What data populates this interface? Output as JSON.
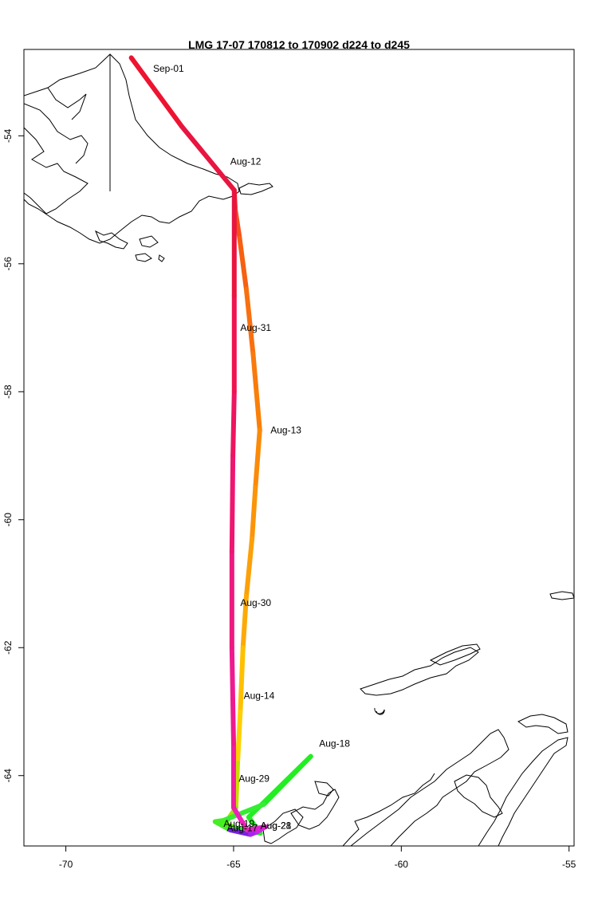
{
  "title": "LMG   17-07    170812 to 170902    d224 to d245",
  "map": {
    "x_ticks": [
      -70,
      -65,
      -60,
      -55
    ],
    "y_ticks": [
      -54,
      -56,
      -58,
      -60,
      -62,
      -64
    ],
    "x_range": [
      -71.25,
      -54.85
    ],
    "y_range": [
      -65.1,
      -52.65
    ]
  },
  "track": [
    {
      "lon": -68.05,
      "lat": -52.78,
      "color": "#ee1122"
    },
    {
      "lon": -66.55,
      "lat": -53.85,
      "color": "#ee1330"
    },
    {
      "lon": -64.98,
      "lat": -54.85,
      "color": "#e81540"
    },
    {
      "lon": -64.95,
      "lat": -55.15,
      "color": "#f23a1c"
    },
    {
      "lon": -64.82,
      "lat": -55.6,
      "color": "#f5501a"
    },
    {
      "lon": -64.62,
      "lat": -56.4,
      "color": "#f66010"
    },
    {
      "lon": -64.42,
      "lat": -57.4,
      "color": "#f87010"
    },
    {
      "lon": -64.32,
      "lat": -58.0,
      "color": "#f97a0c"
    },
    {
      "lon": -64.22,
      "lat": -58.6,
      "color": "#fa7f08"
    },
    {
      "lon": -64.35,
      "lat": -59.5,
      "color": "#fb8a08"
    },
    {
      "lon": -64.45,
      "lat": -60.3,
      "color": "#fc9408"
    },
    {
      "lon": -64.62,
      "lat": -61.2,
      "color": "#fca008"
    },
    {
      "lon": -64.72,
      "lat": -62.0,
      "color": "#fdaa06"
    },
    {
      "lon": -64.8,
      "lat": -63.0,
      "color": "#ffc000"
    },
    {
      "lon": -64.88,
      "lat": -63.8,
      "color": "#ffd000"
    },
    {
      "lon": -64.93,
      "lat": -64.5,
      "color": "#c8dd00"
    },
    {
      "lon": -65.25,
      "lat": -64.75,
      "color": "#99e800"
    },
    {
      "lon": -64.9,
      "lat": -64.83,
      "color": "#55ee00"
    },
    {
      "lon": -64.2,
      "lat": -64.9,
      "color": "#22ee22"
    },
    {
      "lon": -64.55,
      "lat": -64.65,
      "color": "#22ee22"
    },
    {
      "lon": -62.7,
      "lat": -63.7,
      "color": "#22ee22"
    },
    {
      "lon": -64.1,
      "lat": -64.45,
      "color": "#22ee22"
    },
    {
      "lon": -65.3,
      "lat": -64.7,
      "color": "#33ee33"
    },
    {
      "lon": -65.55,
      "lat": -64.72,
      "color": "#44ee22"
    },
    {
      "lon": -65.1,
      "lat": -64.85,
      "color": "#44ee22"
    },
    {
      "lon": -64.5,
      "lat": -64.92,
      "color": "#7722dd"
    },
    {
      "lon": -64.3,
      "lat": -64.88,
      "color": "#aa22ee"
    },
    {
      "lon": -64.05,
      "lat": -64.8,
      "color": "#cc22ee"
    },
    {
      "lon": -64.6,
      "lat": -64.85,
      "color": "#dd22cc"
    },
    {
      "lon": -65.0,
      "lat": -64.5,
      "color": "#ee22bb"
    },
    {
      "lon": -65.0,
      "lat": -63.5,
      "color": "#ee1ea0"
    },
    {
      "lon": -65.05,
      "lat": -62.0,
      "color": "#ee1a90"
    },
    {
      "lon": -65.05,
      "lat": -60.5,
      "color": "#ee1880"
    },
    {
      "lon": -65.02,
      "lat": -59.0,
      "color": "#ee1670"
    },
    {
      "lon": -64.98,
      "lat": -58.0,
      "color": "#ee1560"
    },
    {
      "lon": -64.98,
      "lat": -56.5,
      "color": "#ee1450"
    },
    {
      "lon": -64.98,
      "lat": -54.85,
      "color": "#e81540"
    }
  ],
  "date_labels": [
    {
      "text": "Sep-01",
      "lon": -67.4,
      "lat": -52.95
    },
    {
      "text": "Aug-12",
      "lon": -65.1,
      "lat": -54.4
    },
    {
      "text": "Aug-31",
      "lon": -64.8,
      "lat": -57.0
    },
    {
      "text": "Aug-13",
      "lon": -63.9,
      "lat": -58.6
    },
    {
      "text": "Aug-30",
      "lon": -64.8,
      "lat": -61.3
    },
    {
      "text": "Aug-14",
      "lon": -64.7,
      "lat": -62.75
    },
    {
      "text": "Aug-18",
      "lon": -62.45,
      "lat": -63.5
    },
    {
      "text": "Aug-29",
      "lon": -64.85,
      "lat": -64.05
    },
    {
      "text": "Aug-19",
      "lon": -65.3,
      "lat": -64.75
    },
    {
      "text": "Aug-17",
      "lon": -65.2,
      "lat": -64.82
    },
    {
      "text": "Aug-21",
      "lon": -64.2,
      "lat": -64.78
    },
    {
      "text": "Aug-28",
      "lon": -64.2,
      "lat": -64.78
    }
  ]
}
